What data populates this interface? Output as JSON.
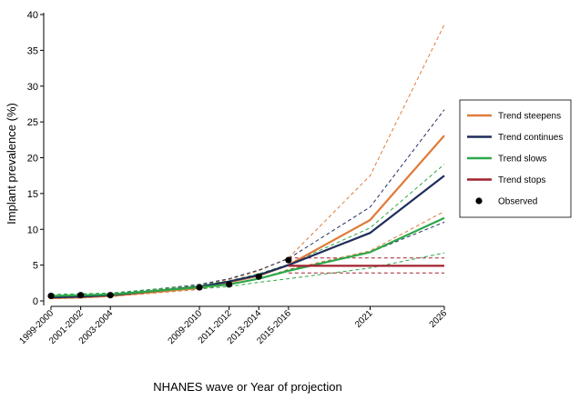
{
  "chart_data": {
    "type": "line",
    "title": "",
    "xlabel": "NHANES wave or Year of projection",
    "ylabel": "Implant prevalence (%)",
    "ylim": [
      0,
      40
    ],
    "yticks": [
      0,
      5,
      10,
      15,
      20,
      25,
      30,
      35,
      40
    ],
    "grid": false,
    "legend_position": "right",
    "x_ticks": [
      {
        "label": "1999-2000",
        "year": 1999.5
      },
      {
        "label": "2001-2002",
        "year": 2001.5
      },
      {
        "label": "2003-2004",
        "year": 2003.5
      },
      {
        "label": "2009-2010",
        "year": 2009.5
      },
      {
        "label": "2011-2012",
        "year": 2011.5
      },
      {
        "label": "2013-2014",
        "year": 2013.5
      },
      {
        "label": "2015-2016",
        "year": 2015.5
      },
      {
        "label": "2021",
        "year": 2021
      },
      {
        "label": "2026",
        "year": 2026
      }
    ],
    "xlim": [
      1999.5,
      2026
    ],
    "series": [
      {
        "name": "Trend steepens",
        "color": "#e07b39",
        "x": [
          1999.5,
          2001.5,
          2003.5,
          2009.5,
          2011.5,
          2013.5,
          2015.5,
          2021,
          2026
        ],
        "values": [
          0.4,
          0.5,
          0.7,
          1.8,
          2.6,
          3.5,
          5.0,
          11.3,
          23.1
        ],
        "lower": [
          0.3,
          0.4,
          0.6,
          1.6,
          2.3,
          3.1,
          4.4,
          7.0,
          12.5
        ],
        "upper": [
          0.6,
          0.7,
          0.9,
          2.2,
          3.0,
          4.2,
          6.0,
          17.5,
          38.6
        ]
      },
      {
        "name": "Trend continues",
        "color": "#1f2d5c",
        "x": [
          1999.5,
          2001.5,
          2003.5,
          2009.5,
          2011.5,
          2013.5,
          2015.5,
          2021,
          2026
        ],
        "values": [
          0.5,
          0.6,
          0.8,
          2.0,
          2.7,
          3.6,
          5.0,
          9.5,
          17.5
        ],
        "lower": [
          0.4,
          0.5,
          0.7,
          1.8,
          2.4,
          3.1,
          4.3,
          6.8,
          11.0
        ],
        "upper": [
          0.7,
          0.8,
          1.0,
          2.3,
          3.1,
          4.3,
          5.9,
          13.1,
          26.7
        ]
      },
      {
        "name": "Trend slows",
        "color": "#2ca84a",
        "x": [
          1999.5,
          2001.5,
          2003.5,
          2009.5,
          2011.5,
          2013.5,
          2015.5,
          2021,
          2026
        ],
        "values": [
          0.7,
          0.8,
          0.9,
          1.9,
          2.3,
          3.1,
          4.2,
          6.8,
          11.6
        ],
        "lower": [
          0.6,
          0.7,
          0.8,
          1.7,
          2.0,
          2.6,
          3.1,
          4.6,
          6.7
        ],
        "upper": [
          0.9,
          1.0,
          1.1,
          2.2,
          2.8,
          3.8,
          5.1,
          10.2,
          19.1
        ]
      },
      {
        "name": "Trend stops",
        "color": "#a3202e",
        "x": [
          2015.5,
          2021,
          2026
        ],
        "values": [
          4.9,
          4.9,
          4.9
        ],
        "lower": [
          3.9,
          3.9,
          3.9
        ],
        "upper": [
          6.0,
          6.0,
          6.0
        ]
      }
    ],
    "observed": {
      "name": "Observed",
      "color": "#000000",
      "x": [
        1999.5,
        2001.5,
        2003.5,
        2009.5,
        2011.5,
        2013.5,
        2015.5
      ],
      "values": [
        0.7,
        0.8,
        0.8,
        1.9,
        2.3,
        3.4,
        5.7
      ]
    }
  }
}
